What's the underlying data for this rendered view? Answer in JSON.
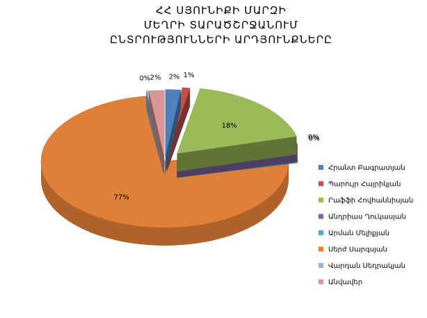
{
  "chart_data": {
    "type": "pie",
    "title_lines": [
      "ՀՀ ՍՅՈՒՆԻՔԻ ՄԱՐԶԻ",
      "ՄԵՂՐԻ ՏԱՐԱԾՇՐՋԱՆՈՒՄ",
      "ԸՆՏՐՈՒԹՅՈՒՆՆԵՐԻ ԱՐԴՅՈՒՆՔՆԵՐԸ"
    ],
    "legend_position": "right",
    "three_d": true,
    "slices": [
      {
        "name": "Հրանտ Բագրատյան",
        "value": 2,
        "label": "2%",
        "color": "#4f81bd"
      },
      {
        "name": "Պարույր Հայրիկյան",
        "value": 1,
        "label": "1%",
        "color": "#c0504d"
      },
      {
        "name": "Րաֆֆի Հովհաննիսյան",
        "value": 18,
        "label": "18%",
        "color": "#9bbb59"
      },
      {
        "name": "Անդրիաս Ղուկասյան",
        "value": 0,
        "label": "0%",
        "color": "#8064a2"
      },
      {
        "name": "Արման Մելիքյան",
        "value": 0,
        "label": "0%",
        "color": "#4bacc6"
      },
      {
        "name": "Սերժ Սարգսյան",
        "value": 77,
        "label": "77%",
        "color": "#e07f37"
      },
      {
        "name": "Վարդան Սեդրակյան",
        "value": 0,
        "label": "0%",
        "color": "#95b3d7"
      },
      {
        "name": "Անվավեր",
        "value": 2,
        "label": "2%",
        "color": "#d99694"
      }
    ]
  }
}
